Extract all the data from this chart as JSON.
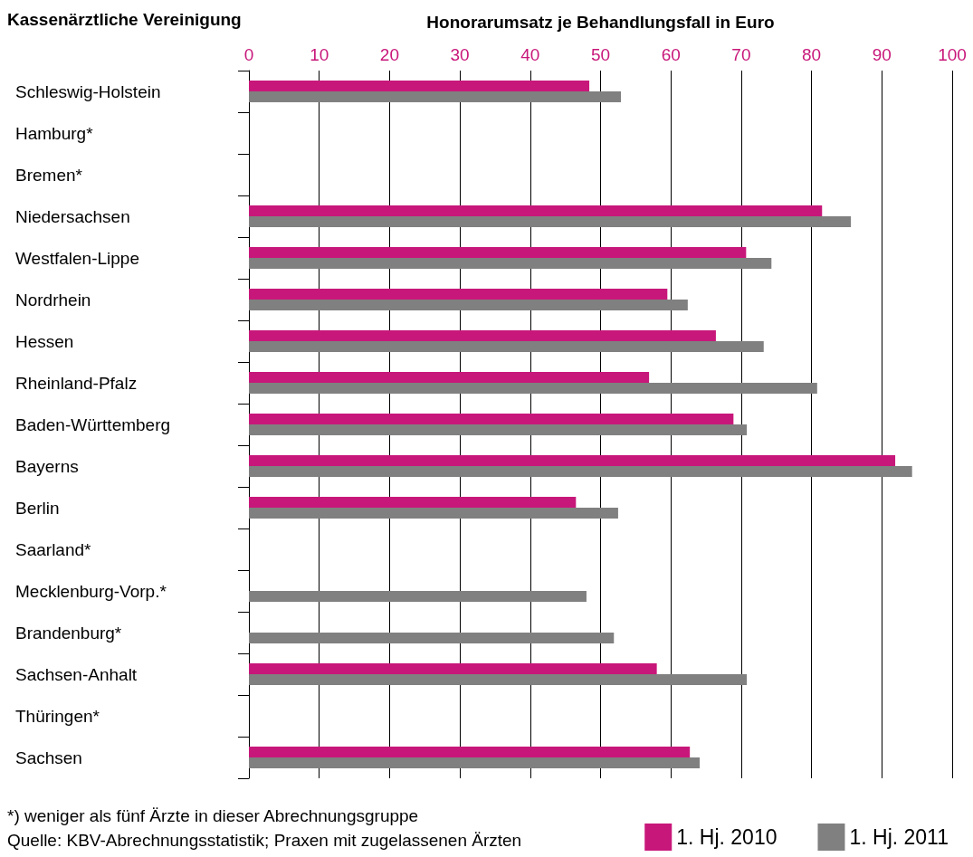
{
  "chart_data": {
    "type": "bar",
    "orientation": "horizontal",
    "xlabel": "Honorarumsatz je Behandlungsfall in Euro",
    "ylabel": "Kassenärztliche Vereinigung",
    "categories": [
      "Schleswig-Holstein",
      "Hamburg*",
      "Bremen*",
      "Niedersachsen",
      "Westfalen-Lippe",
      "Nordrhein",
      "Hessen",
      "Rheinland-Pfalz",
      "Baden-Württemberg",
      "Bayerns",
      "Berlin",
      "Saarland*",
      "Mecklenburg-Vorp.*",
      "Brandenburg*",
      "Sachsen-Anhalt",
      "Thüringen*",
      "Sachsen"
    ],
    "series": [
      {
        "name": "1. Hj. 2010",
        "color": "#c8177a",
        "values": [
          48.4,
          null,
          null,
          81.5,
          70.7,
          59.5,
          66.4,
          56.9,
          68.9,
          91.9,
          46.5,
          null,
          null,
          null,
          58.0,
          null,
          62.7
        ]
      },
      {
        "name": "1. Hj. 2011",
        "color": "#808080",
        "values": [
          52.9,
          null,
          null,
          85.6,
          74.3,
          62.4,
          73.2,
          80.8,
          70.8,
          94.3,
          52.5,
          null,
          48.0,
          51.9,
          70.8,
          null,
          64.1
        ]
      }
    ],
    "xlim": [
      0,
      100
    ],
    "xticks": [
      0,
      10,
      20,
      30,
      40,
      50,
      60,
      70,
      80,
      90,
      100
    ],
    "grid": "x",
    "legend": "bottom right",
    "annotations": [
      "*) weniger als fünf Ärzte in dieser Abrechnungsgruppe",
      "Quelle: KBV-Abrechnungsstatistik; Praxen mit zugelassenen Ärzten"
    ]
  }
}
